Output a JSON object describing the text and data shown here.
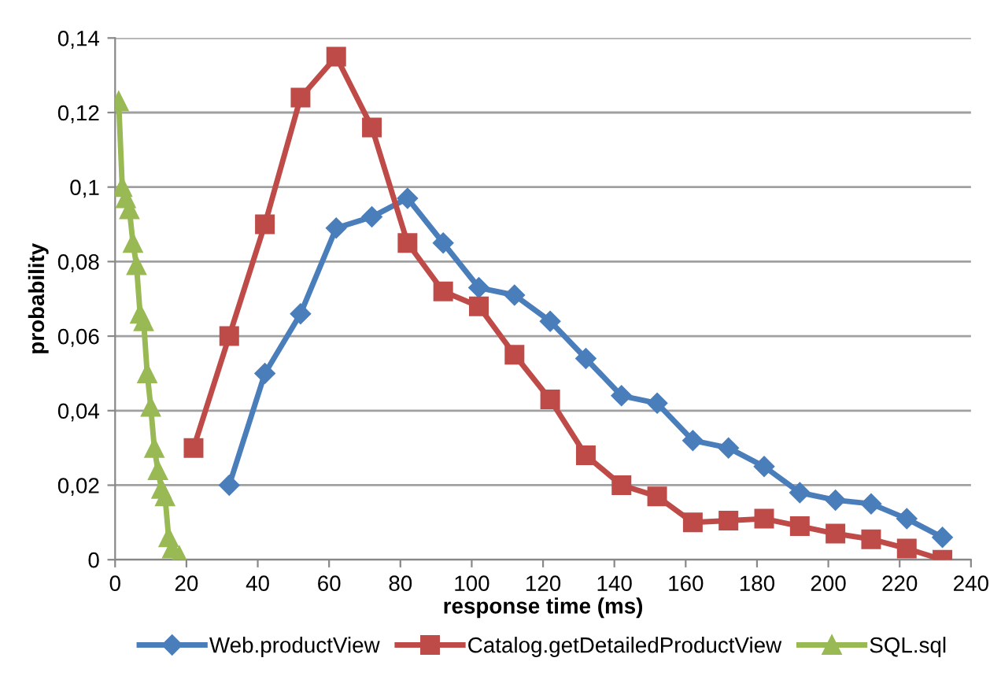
{
  "chart_data": {
    "type": "line",
    "xlabel": "response time (ms)",
    "ylabel": "probability",
    "series": [
      {
        "name": "Web.productView",
        "color": "#4a7ebb",
        "marker": "diamond",
        "x": [
          32,
          42,
          52,
          62,
          72,
          82,
          92,
          102,
          112,
          122,
          132,
          142,
          152,
          162,
          172,
          182,
          192,
          202,
          212,
          222,
          232
        ],
        "values": [
          0.02,
          0.05,
          0.066,
          0.089,
          0.092,
          0.097,
          0.085,
          0.073,
          0.071,
          0.064,
          0.054,
          0.044,
          0.042,
          0.032,
          0.03,
          0.025,
          0.018,
          0.016,
          0.015,
          0.011,
          0.006
        ]
      },
      {
        "name": "Catalog.getDetailedProductView",
        "color": "#be4b48",
        "marker": "square",
        "x": [
          22,
          32,
          42,
          52,
          62,
          72,
          82,
          92,
          102,
          112,
          122,
          132,
          142,
          152,
          162,
          172,
          182,
          192,
          202,
          212,
          222,
          232
        ],
        "values": [
          0.03,
          0.06,
          0.09,
          0.124,
          0.135,
          0.116,
          0.085,
          0.072,
          0.068,
          0.055,
          0.043,
          0.028,
          0.02,
          0.017,
          0.01,
          0.0105,
          0.011,
          0.009,
          0.007,
          0.0055,
          0.003,
          0.0
        ]
      },
      {
        "name": "SQL.sql",
        "color": "#98b954",
        "marker": "triangle",
        "x": [
          1,
          2,
          3,
          4,
          5,
          6,
          7,
          8,
          9,
          10,
          11,
          12,
          13,
          14,
          15,
          16,
          18
        ],
        "values": [
          0.123,
          0.1,
          0.097,
          0.094,
          0.085,
          0.079,
          0.066,
          0.064,
          0.05,
          0.041,
          0.03,
          0.024,
          0.019,
          0.017,
          0.006,
          0.003,
          0.001
        ]
      }
    ],
    "xlim": [
      0,
      240
    ],
    "xticks": [
      0,
      20,
      40,
      60,
      80,
      100,
      120,
      140,
      160,
      180,
      200,
      220,
      240
    ],
    "ylim": [
      0,
      0.14
    ],
    "yticks": [
      0,
      {
        "value": 0.02,
        "label": "0,02"
      },
      {
        "value": 0.04,
        "label": "0,04"
      },
      {
        "value": 0.06,
        "label": "0,06"
      },
      {
        "value": 0.08,
        "label": "0,08"
      },
      {
        "value": 0.1,
        "label": "0,1"
      },
      {
        "value": 0.12,
        "label": "0,12"
      },
      {
        "value": 0.14,
        "label": "0,14"
      }
    ],
    "grid": "y",
    "legend": "bottom",
    "line_style": "solid"
  }
}
